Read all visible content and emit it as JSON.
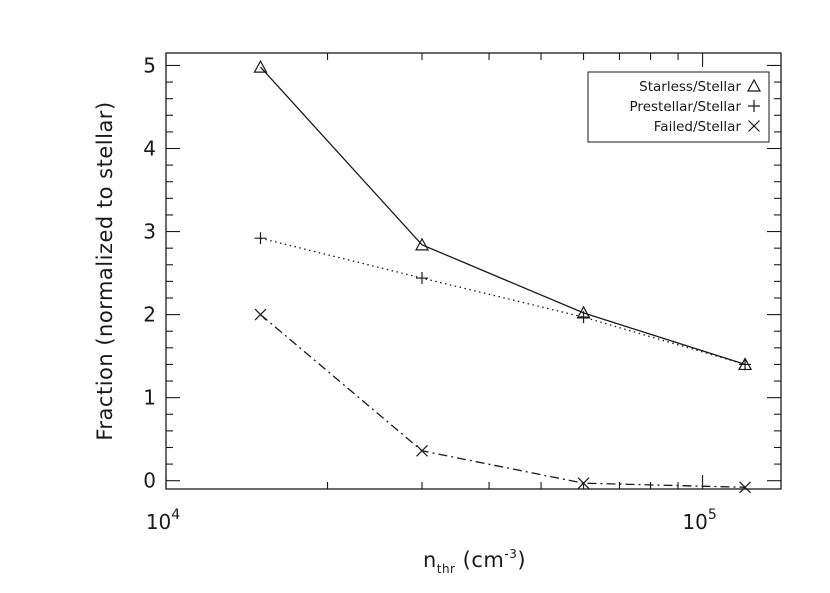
{
  "chart_data": {
    "type": "line",
    "title": "",
    "xlabel_main": "n",
    "xlabel_sub": "thr",
    "xlabel_unit_open": " (cm",
    "xlabel_unit_exp": "-3",
    "xlabel_unit_close": ")",
    "ylabel": "Fraction (normalized to stellar)",
    "x_scale": "log",
    "xlim": [
      10000,
      140000
    ],
    "ylim": [
      -0.1,
      5.15
    ],
    "x_ticks": [
      {
        "value": 10000,
        "base": "10",
        "exp": "4"
      },
      {
        "value": 100000,
        "base": "10",
        "exp": "5"
      }
    ],
    "x_minor_ticks": [
      20000,
      30000,
      40000,
      50000,
      60000,
      70000,
      80000,
      90000
    ],
    "y_ticks": [
      {
        "value": 0,
        "label": "0"
      },
      {
        "value": 1,
        "label": "1"
      },
      {
        "value": 2,
        "label": "2"
      },
      {
        "value": 3,
        "label": "3"
      },
      {
        "value": 4,
        "label": "4"
      },
      {
        "value": 5,
        "label": "5"
      }
    ],
    "y_minor_step": 0.2,
    "legend_position": "top-right",
    "series": [
      {
        "name": "Starless/Stellar",
        "marker": "triangle",
        "line_style": "solid",
        "x": [
          15000,
          30000,
          60000,
          120000
        ],
        "y": [
          4.98,
          2.84,
          2.02,
          1.4
        ]
      },
      {
        "name": "Prestellar/Stellar",
        "marker": "plus",
        "line_style": "dotted",
        "x": [
          15000,
          30000,
          60000,
          120000
        ],
        "y": [
          2.92,
          2.44,
          1.97,
          1.4
        ]
      },
      {
        "name": "Failed/Stellar",
        "marker": "cross",
        "line_style": "dashdot",
        "x": [
          15000,
          30000,
          60000,
          120000
        ],
        "y": [
          2.0,
          0.36,
          -0.03,
          -0.08
        ]
      }
    ]
  }
}
